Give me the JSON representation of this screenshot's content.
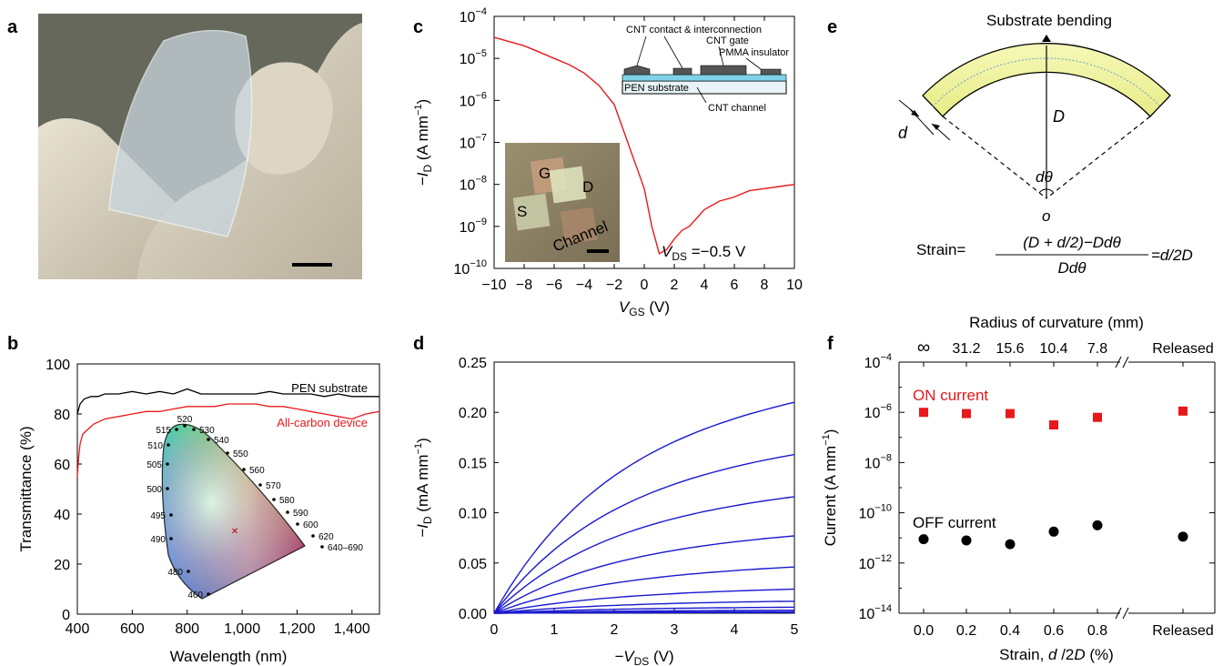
{
  "panel_labels": [
    "a",
    "b",
    "c",
    "d",
    "e",
    "f"
  ],
  "colors": {
    "red": "#e8191b",
    "blue": "#1a1ad0",
    "black": "#000000",
    "green_fill": "#f3f6a8"
  },
  "chart_data": [
    {
      "panel": "b",
      "type": "line",
      "xlabel": "Wavelength (nm)",
      "ylabel": "Transmittance (%)",
      "xlim": [
        400,
        1500
      ],
      "ylim": [
        0,
        100
      ],
      "xticks": [
        400,
        600,
        800,
        1000,
        1200,
        1400
      ],
      "xticklabels": [
        "400",
        "600",
        "800",
        "1,000",
        "1,200",
        "1,400"
      ],
      "yticks": [
        0,
        20,
        40,
        60,
        80,
        100
      ],
      "yticklabels": [
        "0",
        "20",
        "40",
        "60",
        "80",
        "100"
      ],
      "series": [
        {
          "name": "PEN substrate",
          "color": "#000000",
          "x": [
            400,
            410,
            425,
            450,
            475,
            500,
            550,
            600,
            650,
            700,
            750,
            800,
            850,
            900,
            950,
            1000,
            1050,
            1100,
            1150,
            1200,
            1250,
            1300,
            1350,
            1400,
            1450,
            1500
          ],
          "y": [
            80,
            84,
            86,
            87,
            87,
            88,
            88,
            89,
            88,
            89,
            88,
            90,
            88,
            88,
            88,
            88,
            88,
            89,
            88,
            88,
            88,
            87,
            88,
            87,
            87,
            87
          ]
        },
        {
          "name": "All-carbon device",
          "color": "#e8191b",
          "x": [
            400,
            405,
            410,
            420,
            440,
            460,
            480,
            500,
            550,
            600,
            650,
            700,
            750,
            800,
            850,
            900,
            950,
            1000,
            1050,
            1100,
            1150,
            1200,
            1250,
            1300,
            1350,
            1400,
            1450,
            1500
          ],
          "y": [
            55,
            63,
            68,
            72,
            74,
            76,
            77,
            78,
            79,
            80,
            81,
            81,
            82,
            83,
            83,
            83,
            84,
            84,
            84,
            83,
            83,
            82,
            81,
            80,
            79,
            78,
            80,
            81
          ]
        }
      ],
      "inset": {
        "chromaticity_labels": [
          "460",
          "480",
          "490",
          "495",
          "500",
          "505",
          "510",
          "515",
          "520",
          "530",
          "540",
          "550",
          "560",
          "570",
          "580",
          "590",
          "600",
          "620",
          "640–690"
        ]
      }
    },
    {
      "panel": "c",
      "type": "line",
      "xlabel": "VGS (V)",
      "ylabel": "−ID (A mm−1)",
      "xlim": [
        -10,
        10
      ],
      "log_y": true,
      "ylim_exp": [
        -10,
        -4
      ],
      "xticks": [
        -10,
        -8,
        -6,
        -4,
        -2,
        0,
        2,
        4,
        6,
        8,
        10
      ],
      "xticklabels": [
        "−10",
        "−8",
        "−6",
        "−4",
        "−2",
        "0",
        "2",
        "4",
        "6",
        "8",
        "10"
      ],
      "yticks_exp": [
        -10,
        -9,
        -8,
        -7,
        -6,
        -5,
        -4
      ],
      "series": [
        {
          "name": "",
          "color": "#e8191b",
          "x": [
            -10,
            -9,
            -8,
            -7,
            -6,
            -5,
            -4,
            -3,
            -2,
            -1.5,
            -1,
            -0.5,
            0,
            0.5,
            1,
            1.5,
            2,
            2.5,
            3,
            3.5,
            4,
            5,
            6,
            7,
            8,
            9,
            10
          ],
          "log10_y": [
            -4.5,
            -4.6,
            -4.7,
            -4.85,
            -5.0,
            -5.15,
            -5.35,
            -5.65,
            -6.1,
            -6.6,
            -7.1,
            -7.6,
            -8.1,
            -9.0,
            -9.65,
            -9.55,
            -9.3,
            -9.1,
            -9.0,
            -8.8,
            -8.6,
            -8.4,
            -8.3,
            -8.15,
            -8.1,
            -8.05,
            -8.0
          ]
        }
      ],
      "annotation": "VDS =−0.5 V",
      "inset_schematic": {
        "labels": [
          "CNT contact & interconnection",
          "CNT gate",
          "PMMA insulator",
          "PEN substrate",
          "CNT channel"
        ]
      },
      "inset_photo": {
        "labels": [
          "G",
          "D",
          "S",
          "Channel"
        ]
      }
    },
    {
      "panel": "d",
      "type": "line",
      "xlabel": "−VDS (V)",
      "ylabel": "−ID (mA mm−1)",
      "xlim": [
        0,
        5
      ],
      "ylim": [
        0,
        0.25
      ],
      "xticks": [
        0,
        1,
        2,
        3,
        4,
        5
      ],
      "xticklabels": [
        "0",
        "1",
        "2",
        "3",
        "4",
        "5"
      ],
      "yticks": [
        0,
        0.05,
        0.1,
        0.15,
        0.2,
        0.25
      ],
      "yticklabels": [
        "0.00",
        "0.05",
        "0.10",
        "0.15",
        "0.20",
        "0.25"
      ],
      "series_end_values": [
        0.21,
        0.158,
        0.116,
        0.077,
        0.046,
        0.024,
        0.012,
        0.006,
        0.003,
        0.0015,
        0.0007
      ]
    },
    {
      "panel": "f",
      "type": "scatter",
      "xlabel": "Strain, d /2D (%)",
      "ylabel": "Current (A mm−1)",
      "top_label": "Radius of curvature (mm)",
      "log_y": true,
      "ylim_exp": [
        -14,
        -4
      ],
      "xticklabels": [
        "0.0",
        "0.2",
        "0.4",
        "0.6",
        "0.8",
        "Released"
      ],
      "top_ticklabels": [
        "∞",
        "31.2",
        "15.6",
        "10.4",
        "7.8",
        "Released"
      ],
      "yticks_exp": [
        -14,
        -12,
        -10,
        -8,
        -6,
        -4
      ],
      "series": [
        {
          "name": "ON current",
          "color": "#e8191b",
          "marker": "square",
          "x": [
            "0.0",
            "0.2",
            "0.4",
            "0.6",
            "0.8",
            "Released"
          ],
          "log10_y": [
            -6.0,
            -6.05,
            -6.05,
            -6.5,
            -6.2,
            -5.95
          ]
        },
        {
          "name": "OFF current",
          "color": "#000000",
          "marker": "circle",
          "x": [
            "0.0",
            "0.2",
            "0.4",
            "0.6",
            "0.8",
            "Released"
          ],
          "log10_y": [
            -11.05,
            -11.1,
            -11.25,
            -10.75,
            -10.5,
            -10.95
          ]
        }
      ]
    }
  ],
  "panel_e": {
    "title": "Substrate bending",
    "labels": [
      "d",
      "D",
      "dθ",
      "o"
    ],
    "formula": {
      "prefix": "Strain=",
      "numerator": "(D + d/2)−Ddθ",
      "denominator": "Ddθ",
      "result": "=d/2D"
    }
  }
}
